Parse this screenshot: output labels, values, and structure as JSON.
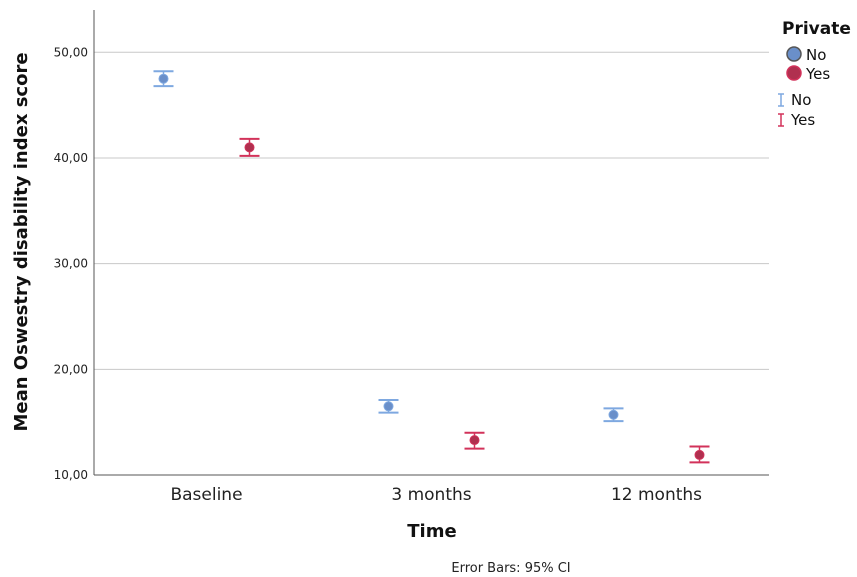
{
  "chart_data": {
    "type": "scatter",
    "title": "",
    "xlabel": "Time",
    "ylabel": "Mean Oswestry disability index  score",
    "categories": [
      "Baseline",
      "3 months",
      "12 months"
    ],
    "ylim": [
      10,
      54
    ],
    "yticks": [
      10,
      20,
      30,
      40,
      50
    ],
    "ytick_labels": [
      "10,00",
      "20,00",
      "30,00",
      "40,00",
      "50,00"
    ],
    "grid": "horizontal",
    "legend_title": "Private",
    "legend_position": "top-right",
    "series": [
      {
        "name": "No",
        "color": "#6a8fc9",
        "bar_color": "#7ea8e0",
        "values": [
          47.5,
          16.5,
          15.7
        ],
        "ci_low": [
          46.8,
          15.9,
          15.1
        ],
        "ci_high": [
          48.2,
          17.1,
          16.3
        ]
      },
      {
        "name": "Yes",
        "color": "#b0304f",
        "bar_color": "#d2325a",
        "values": [
          41.0,
          13.3,
          11.9
        ],
        "ci_low": [
          40.2,
          12.5,
          11.2
        ],
        "ci_high": [
          41.8,
          14.0,
          12.7
        ]
      }
    ],
    "note": "Error Bars: 95% CI"
  }
}
